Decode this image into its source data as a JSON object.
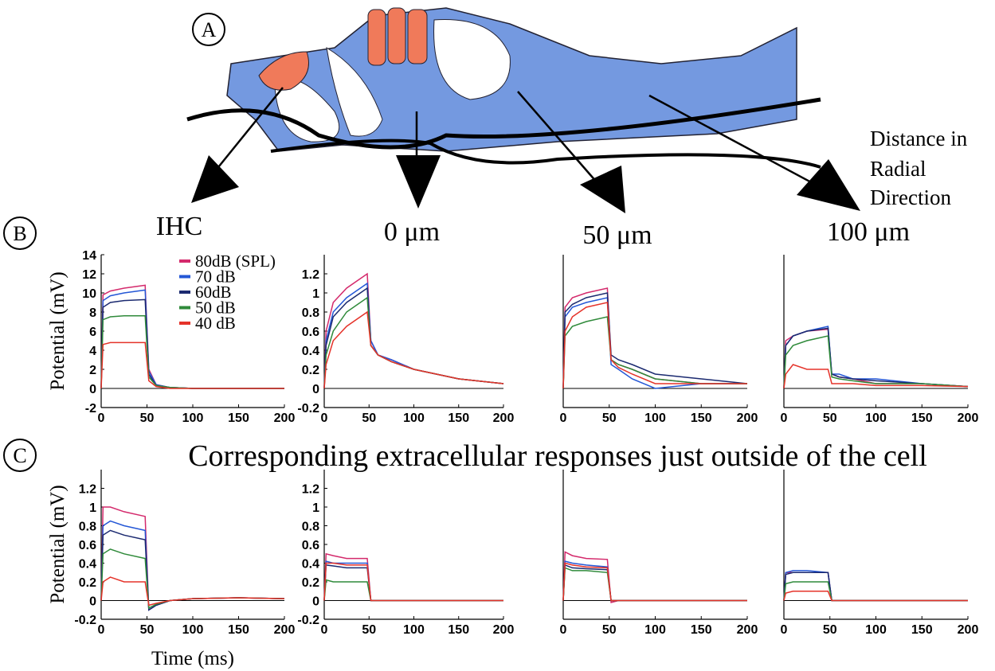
{
  "figure": {
    "panel_labels": [
      "A",
      "B",
      "C"
    ],
    "radial_label": [
      "Distance in",
      "Radial",
      "Direction"
    ],
    "positions": [
      "IHC",
      "0 μm",
      "50 μm",
      "100 μm"
    ],
    "c_title": "Corresponding extracellular responses just outside of the cell"
  },
  "chart_data": [
    {
      "type": "line",
      "ylabel": "Potential (mV)",
      "xlim": [
        0,
        200
      ],
      "xticks": [
        0,
        50,
        100,
        150,
        200
      ],
      "ylim": [
        -2,
        14
      ],
      "yticks": [
        -2,
        0,
        2,
        4,
        6,
        8,
        10,
        12,
        14
      ],
      "zero_line": true,
      "x": [
        0,
        2,
        10,
        25,
        48,
        52,
        60,
        75,
        100,
        150,
        200
      ],
      "series": [
        {
          "name": "80dB (SPL)",
          "color": "#d42a6c",
          "values": [
            0,
            9.8,
            10.2,
            10.5,
            10.8,
            2,
            0.4,
            0.1,
            0,
            0,
            0
          ]
        },
        {
          "name": "70 dB",
          "color": "#2457d6",
          "values": [
            0,
            9.2,
            9.7,
            10,
            10.3,
            1.8,
            0.4,
            0.1,
            0,
            0,
            0
          ]
        },
        {
          "name": "60dB",
          "color": "#1b2a70",
          "values": [
            0,
            8.5,
            9,
            9.2,
            9.3,
            1.5,
            0.3,
            0.1,
            0,
            0,
            0
          ]
        },
        {
          "name": "50 dB",
          "color": "#2f8a3a",
          "values": [
            0,
            7.2,
            7.5,
            7.6,
            7.6,
            1.2,
            0.3,
            0.1,
            0,
            0,
            0
          ]
        },
        {
          "name": "40 dB",
          "color": "#e5332a",
          "values": [
            0,
            4.6,
            4.8,
            4.8,
            4.8,
            0.8,
            0.2,
            0,
            0,
            0,
            0
          ]
        }
      ]
    },
    {
      "type": "line",
      "xlim": [
        0,
        200
      ],
      "xticks": [
        0,
        50,
        100,
        150,
        200
      ],
      "ylim": [
        -0.2,
        1.4
      ],
      "yticks": [
        -0.2,
        0,
        0.2,
        0.4,
        0.6,
        0.8,
        1,
        1.2
      ],
      "zero_line": true,
      "x": [
        0,
        2,
        10,
        25,
        48,
        52,
        60,
        75,
        100,
        150,
        200
      ],
      "series": [
        {
          "color": "#d42a6c",
          "values": [
            0,
            0.6,
            0.9,
            1.05,
            1.2,
            0.5,
            0.35,
            0.3,
            0.2,
            0.1,
            0.05
          ]
        },
        {
          "color": "#2457d6",
          "values": [
            0,
            0.5,
            0.8,
            0.95,
            1.1,
            0.5,
            0.35,
            0.3,
            0.2,
            0.1,
            0.05
          ]
        },
        {
          "color": "#1b2a70",
          "values": [
            0,
            0.45,
            0.75,
            0.9,
            1.05,
            0.45,
            0.35,
            0.28,
            0.2,
            0.1,
            0.05
          ]
        },
        {
          "color": "#2f8a3a",
          "values": [
            0,
            0.35,
            0.6,
            0.8,
            0.95,
            0.45,
            0.35,
            0.28,
            0.2,
            0.1,
            0.05
          ]
        },
        {
          "color": "#e5332a",
          "values": [
            0,
            0.25,
            0.5,
            0.65,
            0.8,
            0.45,
            0.35,
            0.28,
            0.2,
            0.1,
            0.05
          ]
        }
      ]
    },
    {
      "type": "line",
      "xlim": [
        0,
        200
      ],
      "xticks": [
        0,
        50,
        100,
        150,
        200
      ],
      "ylim": [
        -0.2,
        1.4
      ],
      "zero_line": true,
      "x": [
        0,
        2,
        10,
        25,
        48,
        52,
        60,
        75,
        100,
        150,
        200
      ],
      "series": [
        {
          "color": "#d42a6c",
          "values": [
            0,
            0.85,
            0.95,
            1.0,
            1.05,
            0.3,
            0.25,
            0.2,
            0.1,
            0.05,
            0.05
          ]
        },
        {
          "color": "#2457d6",
          "values": [
            0,
            0.75,
            0.85,
            0.9,
            0.95,
            0.25,
            0.2,
            0.1,
            0,
            0.05,
            0.05
          ]
        },
        {
          "color": "#1b2a70",
          "values": [
            0,
            0.8,
            0.88,
            0.95,
            1.0,
            0.35,
            0.3,
            0.25,
            0.15,
            0.1,
            0.05
          ]
        },
        {
          "color": "#2f8a3a",
          "values": [
            0,
            0.55,
            0.65,
            0.7,
            0.75,
            0.3,
            0.25,
            0.2,
            0.1,
            0.05,
            0.05
          ]
        },
        {
          "color": "#e5332a",
          "values": [
            0,
            0.6,
            0.75,
            0.85,
            0.9,
            0.3,
            0.22,
            0.15,
            0.05,
            0.05,
            0.05
          ]
        }
      ]
    },
    {
      "type": "line",
      "xlim": [
        0,
        200
      ],
      "xticks": [
        0,
        50,
        100,
        150,
        200
      ],
      "ylim": [
        -0.2,
        1.4
      ],
      "zero_line": true,
      "x": [
        0,
        2,
        10,
        25,
        48,
        52,
        60,
        75,
        100,
        150,
        200
      ],
      "series": [
        {
          "color": "#d42a6c",
          "values": [
            0,
            0.5,
            0.55,
            0.6,
            0.62,
            0.15,
            0.12,
            0.1,
            0.05,
            0.05,
            0.02
          ]
        },
        {
          "color": "#2457d6",
          "values": [
            0,
            0.45,
            0.55,
            0.6,
            0.65,
            0.15,
            0.15,
            0.1,
            0.1,
            0.05,
            0.02
          ]
        },
        {
          "color": "#1b2a70",
          "values": [
            0,
            0.45,
            0.55,
            0.6,
            0.63,
            0.15,
            0.12,
            0.1,
            0.08,
            0.05,
            0.02
          ]
        },
        {
          "color": "#2f8a3a",
          "values": [
            0,
            0.35,
            0.45,
            0.5,
            0.55,
            0.12,
            0.1,
            0.08,
            0.05,
            0.05,
            0.02
          ]
        },
        {
          "color": "#e5332a",
          "values": [
            0,
            0.15,
            0.25,
            0.2,
            0.2,
            0.05,
            0.05,
            0.05,
            0.03,
            0.03,
            0.02
          ]
        }
      ]
    },
    {
      "type": "line",
      "ylabel": "Potential (mV)",
      "xlabel": "Time (ms)",
      "xlim": [
        0,
        200
      ],
      "xticks": [
        0,
        50,
        100,
        150,
        200
      ],
      "ylim": [
        -0.2,
        1.4
      ],
      "yticks": [
        -0.2,
        0,
        0.2,
        0.4,
        0.6,
        0.8,
        1,
        1.2
      ],
      "zero_line": true,
      "x": [
        0,
        2,
        10,
        25,
        48,
        52,
        60,
        75,
        100,
        150,
        200
      ],
      "series": [
        {
          "color": "#d42a6c",
          "values": [
            0,
            1.0,
            1.0,
            0.95,
            0.9,
            -0.1,
            -0.05,
            0,
            0.02,
            0.03,
            0.02
          ]
        },
        {
          "color": "#2457d6",
          "values": [
            0,
            0.8,
            0.85,
            0.8,
            0.75,
            -0.1,
            -0.05,
            0,
            0.02,
            0.03,
            0.02
          ]
        },
        {
          "color": "#1b2a70",
          "values": [
            0,
            0.7,
            0.75,
            0.7,
            0.65,
            -0.1,
            -0.05,
            0,
            0.02,
            0.03,
            0.02
          ]
        },
        {
          "color": "#2f8a3a",
          "values": [
            0,
            0.5,
            0.55,
            0.5,
            0.45,
            -0.08,
            -0.04,
            0,
            0.02,
            0.03,
            0.02
          ]
        },
        {
          "color": "#e5332a",
          "values": [
            0,
            0.2,
            0.25,
            0.2,
            0.2,
            -0.05,
            -0.03,
            0,
            0.02,
            0.03,
            0.02
          ]
        }
      ]
    },
    {
      "type": "line",
      "xlim": [
        0,
        200
      ],
      "xticks": [
        0,
        50,
        100,
        150,
        200
      ],
      "ylim": [
        -0.2,
        1.4
      ],
      "yticks": [
        -0.2,
        0,
        0.2,
        0.4,
        0.6,
        0.8,
        1,
        1.2
      ],
      "zero_line": true,
      "x": [
        0,
        2,
        10,
        25,
        48,
        52,
        60,
        75,
        100,
        150,
        200
      ],
      "series": [
        {
          "color": "#d42a6c",
          "values": [
            0,
            0.5,
            0.48,
            0.45,
            0.45,
            0,
            0,
            0,
            0,
            0,
            0
          ]
        },
        {
          "color": "#2457d6",
          "values": [
            0,
            0.42,
            0.4,
            0.4,
            0.4,
            0,
            0,
            0,
            0,
            0,
            0
          ]
        },
        {
          "color": "#1b2a70",
          "values": [
            0,
            0.38,
            0.37,
            0.35,
            0.35,
            0,
            0,
            0,
            0,
            0,
            0
          ]
        },
        {
          "color": "#2f8a3a",
          "values": [
            0,
            0.22,
            0.2,
            0.2,
            0.2,
            0,
            0,
            0,
            0,
            0,
            0
          ]
        },
        {
          "color": "#e5332a",
          "values": [
            0,
            0.4,
            0.4,
            0.38,
            0.38,
            0,
            0,
            0,
            0,
            0,
            0
          ]
        }
      ]
    },
    {
      "type": "line",
      "xlim": [
        0,
        200
      ],
      "xticks": [
        0,
        50,
        100,
        150,
        200
      ],
      "ylim": [
        -0.2,
        1.4
      ],
      "zero_line": true,
      "x": [
        0,
        2,
        10,
        25,
        48,
        52,
        60,
        75,
        100,
        150,
        200
      ],
      "series": [
        {
          "color": "#d42a6c",
          "values": [
            0,
            0.52,
            0.48,
            0.45,
            0.44,
            -0.02,
            0,
            0,
            0,
            0,
            0
          ]
        },
        {
          "color": "#2457d6",
          "values": [
            0,
            0.42,
            0.4,
            0.38,
            0.36,
            0,
            0,
            0,
            0,
            0,
            0
          ]
        },
        {
          "color": "#1b2a70",
          "values": [
            0,
            0.38,
            0.35,
            0.34,
            0.33,
            0,
            0,
            0,
            0,
            0,
            0
          ]
        },
        {
          "color": "#2f8a3a",
          "values": [
            0,
            0.35,
            0.32,
            0.32,
            0.3,
            0,
            0,
            0,
            0,
            0,
            0
          ]
        },
        {
          "color": "#e5332a",
          "values": [
            0,
            0.4,
            0.38,
            0.36,
            0.35,
            0,
            0,
            0,
            0,
            0,
            0
          ]
        }
      ]
    },
    {
      "type": "line",
      "xlim": [
        0,
        200
      ],
      "xticks": [
        0,
        50,
        100,
        150,
        200
      ],
      "ylim": [
        -0.2,
        1.4
      ],
      "zero_line": true,
      "x": [
        0,
        2,
        10,
        25,
        48,
        52,
        60,
        75,
        100,
        150,
        200
      ],
      "series": [
        {
          "color": "#d42a6c",
          "values": [
            0,
            0.3,
            0.3,
            0.3,
            0.3,
            0,
            0,
            0,
            0,
            0,
            0
          ]
        },
        {
          "color": "#2457d6",
          "values": [
            0,
            0.3,
            0.32,
            0.32,
            0.3,
            0,
            0,
            0,
            0,
            0,
            0
          ]
        },
        {
          "color": "#1b2a70",
          "values": [
            0,
            0.28,
            0.3,
            0.3,
            0.3,
            0,
            0,
            0,
            0,
            0,
            0
          ]
        },
        {
          "color": "#2f8a3a",
          "values": [
            0,
            0.18,
            0.2,
            0.2,
            0.2,
            0,
            0,
            0,
            0,
            0,
            0
          ]
        },
        {
          "color": "#e5332a",
          "values": [
            0,
            0.08,
            0.1,
            0.1,
            0.1,
            0,
            0,
            0,
            0,
            0,
            0
          ]
        }
      ]
    }
  ]
}
